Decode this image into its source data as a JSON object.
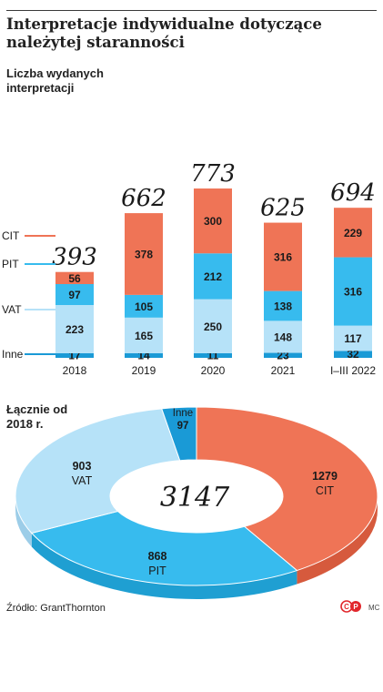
{
  "title": "Interpretacje indywidualne dotyczące należytej staranności",
  "bar_subtitle": "Liczba wydanych interpretacji",
  "donut_subtitle": "Łącznie od 2018 r.",
  "source": "Źródło: GrantThornton",
  "logo_text": "CP",
  "author": "MC",
  "colors": {
    "CIT": "#ef7456",
    "PIT": "#37bbee",
    "VAT": "#b6e2f8",
    "Inne": "#1a9ad6"
  },
  "chart_data": [
    {
      "type": "bar",
      "stacked": true,
      "title": "Liczba wydanych interpretacji",
      "categories": [
        "2018",
        "2019",
        "2020",
        "2021",
        "I–III 2022"
      ],
      "totals": [
        393,
        662,
        773,
        625,
        694
      ],
      "series": [
        {
          "name": "Inne",
          "values": [
            17,
            14,
            11,
            23,
            32
          ]
        },
        {
          "name": "VAT",
          "values": [
            223,
            165,
            250,
            148,
            117
          ]
        },
        {
          "name": "PIT",
          "values": [
            97,
            105,
            212,
            138,
            316
          ]
        },
        {
          "name": "CIT",
          "values": [
            56,
            378,
            300,
            316,
            229
          ]
        }
      ],
      "legend": [
        "CIT",
        "PIT",
        "VAT",
        "Inne"
      ]
    },
    {
      "type": "pie",
      "donut": true,
      "title": "Łącznie od 2018 r.",
      "total": 3147,
      "slices": [
        {
          "name": "CIT",
          "value": 1279
        },
        {
          "name": "PIT",
          "value": 868
        },
        {
          "name": "VAT",
          "value": 903
        },
        {
          "name": "Inne",
          "value": 97
        }
      ]
    }
  ]
}
